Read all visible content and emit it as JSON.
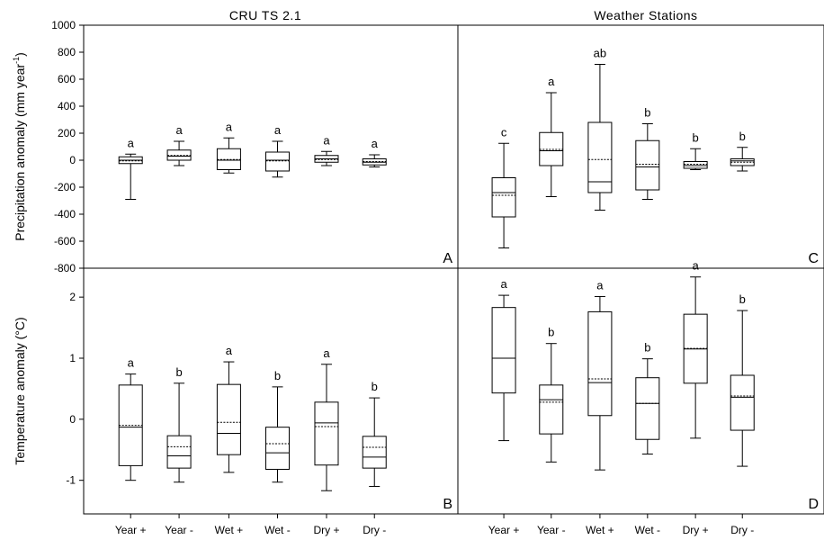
{
  "chart_data": {
    "type": "box",
    "categories": [
      "Year +",
      "Year -",
      "Wet +",
      "Wet -",
      "Dry +",
      "Dry -"
    ],
    "columns": [
      {
        "title": "CRU TS 2.1"
      },
      {
        "title": "Weather Stations"
      }
    ],
    "rows": [
      {
        "ylabel": "Precipitation anomaly (mm year",
        "ylabel_sup": "-1",
        "ylabel_end": ")",
        "ylim": [
          -800,
          1000
        ],
        "yticks": [
          "-800",
          "-600",
          "-400",
          "-200",
          "0",
          "200",
          "400",
          "600",
          "800",
          "1000"
        ],
        "ytick_values": [
          -800,
          -600,
          -400,
          -200,
          0,
          200,
          400,
          600,
          800,
          1000
        ]
      },
      {
        "ylabel": "Temperature anomaly (°C)",
        "ylabel_sup": "",
        "ylabel_end": "",
        "ylim": [
          -1.55,
          2.4
        ],
        "yticks": [
          "-1",
          "0",
          "1",
          "2"
        ],
        "ytick_values": [
          -1,
          0,
          1,
          2
        ]
      }
    ],
    "panels": [
      {
        "letter": "A",
        "row": 0,
        "col": 0,
        "boxes": [
          {
            "min": -290,
            "q1": -25,
            "median": 0,
            "mean": -5,
            "q3": 25,
            "max": 45,
            "label": "a"
          },
          {
            "min": -40,
            "q1": 0,
            "median": 30,
            "mean": 35,
            "q3": 75,
            "max": 140,
            "label": "a"
          },
          {
            "min": -95,
            "q1": -70,
            "median": 0,
            "mean": 5,
            "q3": 85,
            "max": 165,
            "label": "a"
          },
          {
            "min": -125,
            "q1": -80,
            "median": 0,
            "mean": -5,
            "q3": 60,
            "max": 140,
            "label": "a"
          },
          {
            "min": -40,
            "q1": -15,
            "median": 10,
            "mean": 5,
            "q3": 35,
            "max": 65,
            "label": "a"
          },
          {
            "min": -50,
            "q1": -35,
            "median": -15,
            "mean": -10,
            "q3": 10,
            "max": 40,
            "label": "a"
          }
        ]
      },
      {
        "letter": "C",
        "row": 0,
        "col": 1,
        "boxes": [
          {
            "min": -650,
            "q1": -420,
            "median": -240,
            "mean": -260,
            "q3": -130,
            "max": 125,
            "label": "c"
          },
          {
            "min": -270,
            "q1": -40,
            "median": 70,
            "mean": 80,
            "q3": 205,
            "max": 500,
            "label": "a"
          },
          {
            "min": -370,
            "q1": -240,
            "median": -160,
            "mean": 5,
            "q3": 280,
            "max": 710,
            "label": "ab"
          },
          {
            "min": -290,
            "q1": -220,
            "median": -50,
            "mean": -30,
            "q3": 145,
            "max": 270,
            "label": "b"
          },
          {
            "min": -70,
            "q1": -60,
            "median": -40,
            "mean": -30,
            "q3": -10,
            "max": 85,
            "label": "b"
          },
          {
            "min": -80,
            "q1": -40,
            "median": -5,
            "mean": -15,
            "q3": 10,
            "max": 95,
            "label": "b"
          }
        ]
      },
      {
        "letter": "B",
        "row": 1,
        "col": 0,
        "boxes": [
          {
            "min": -1.0,
            "q1": -0.76,
            "median": -0.13,
            "mean": -0.1,
            "q3": 0.56,
            "max": 0.74,
            "label": "a"
          },
          {
            "min": -1.03,
            "q1": -0.8,
            "median": -0.6,
            "mean": -0.45,
            "q3": -0.27,
            "max": 0.59,
            "label": "b"
          },
          {
            "min": -0.87,
            "q1": -0.58,
            "median": -0.23,
            "mean": -0.05,
            "q3": 0.57,
            "max": 0.94,
            "label": "a"
          },
          {
            "min": -1.03,
            "q1": -0.82,
            "median": -0.55,
            "mean": -0.4,
            "q3": -0.13,
            "max": 0.53,
            "label": "b"
          },
          {
            "min": -1.17,
            "q1": -0.75,
            "median": -0.06,
            "mean": -0.12,
            "q3": 0.28,
            "max": 0.9,
            "label": "a"
          },
          {
            "min": -1.1,
            "q1": -0.8,
            "median": -0.62,
            "mean": -0.46,
            "q3": -0.28,
            "max": 0.35,
            "label": "b"
          }
        ]
      },
      {
        "letter": "D",
        "row": 1,
        "col": 1,
        "boxes": [
          {
            "min": -0.35,
            "q1": 0.43,
            "median": 1.0,
            "mean": 1.0,
            "q3": 1.83,
            "max": 2.03,
            "label": "a"
          },
          {
            "min": -0.7,
            "q1": -0.24,
            "median": 0.32,
            "mean": 0.28,
            "q3": 0.56,
            "max": 1.24,
            "label": "b"
          },
          {
            "min": -0.83,
            "q1": 0.06,
            "median": 0.6,
            "mean": 0.66,
            "q3": 1.76,
            "max": 2.01,
            "label": "a"
          },
          {
            "min": -0.57,
            "q1": -0.33,
            "median": 0.26,
            "mean": 0.26,
            "q3": 0.68,
            "max": 0.99,
            "label": "b"
          },
          {
            "min": -0.31,
            "q1": 0.59,
            "median": 1.15,
            "mean": 1.16,
            "q3": 1.72,
            "max": 2.33,
            "label": "a"
          },
          {
            "min": -0.77,
            "q1": -0.18,
            "median": 0.36,
            "mean": 0.38,
            "q3": 0.72,
            "max": 1.78,
            "label": "b"
          }
        ]
      }
    ]
  }
}
